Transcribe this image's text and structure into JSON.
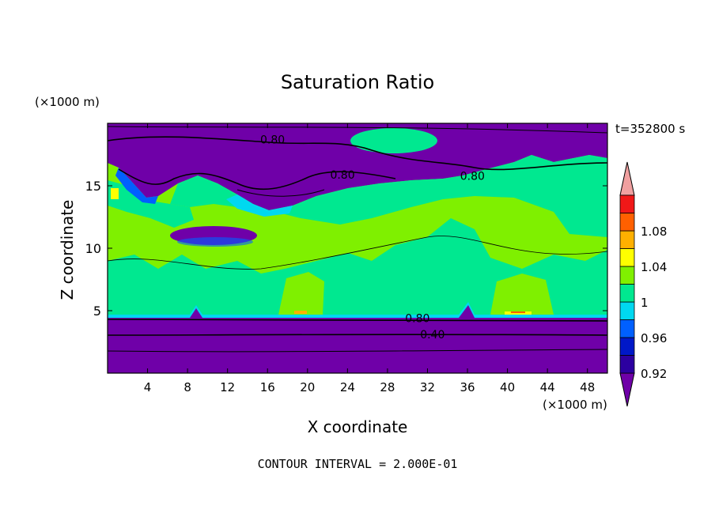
{
  "chart_data": {
    "type": "heatmap",
    "title": "Saturation Ratio",
    "xlabel": "X coordinate",
    "ylabel": "Z coordinate",
    "x_unit_label": "(×1000 m)",
    "y_unit_label": "(×1000 m)",
    "time_label": "t=352800 s",
    "footer": "CONTOUR INTERVAL = 2.000E-01",
    "xlim": [
      0,
      50
    ],
    "ylim": [
      0,
      20
    ],
    "x_ticks": [
      4,
      8,
      12,
      16,
      20,
      24,
      28,
      32,
      36,
      40,
      44,
      48
    ],
    "y_ticks": [
      5,
      10,
      15
    ],
    "x_tick_labels": [
      "4",
      "8",
      "12",
      "16",
      "20",
      "24",
      "28",
      "32",
      "36",
      "40",
      "44",
      "48"
    ],
    "y_tick_labels": [
      "5",
      "10",
      "15"
    ],
    "contour_labels": [
      {
        "text": "0.80",
        "x": 16.5,
        "y": 18.7
      },
      {
        "text": "0.80",
        "x": 23.5,
        "y": 15.9
      },
      {
        "text": "0.80",
        "x": 36.5,
        "y": 15.8
      },
      {
        "text": "0.80",
        "x": 31,
        "y": 4.4
      },
      {
        "text": "0.40",
        "x": 32.5,
        "y": 3.1
      }
    ],
    "colorbar": {
      "levels": [
        "<0.9",
        "0.92",
        "0.94",
        "0.96",
        "0.98",
        "1",
        "1.02",
        "1.04",
        "1.06",
        "1.08",
        "1.1",
        ">1.1"
      ],
      "colors": [
        "#6f00a8",
        "#2c00a0",
        "#0018c8",
        "#0060ff",
        "#00d8f0",
        "#00e890",
        "#80f000",
        "#ffff00",
        "#ffb000",
        "#ff6000",
        "#f01818",
        "#f0a0a0"
      ],
      "tick_labels": [
        "1.08",
        "1.04",
        "1",
        "0.96",
        "0.92"
      ]
    }
  }
}
